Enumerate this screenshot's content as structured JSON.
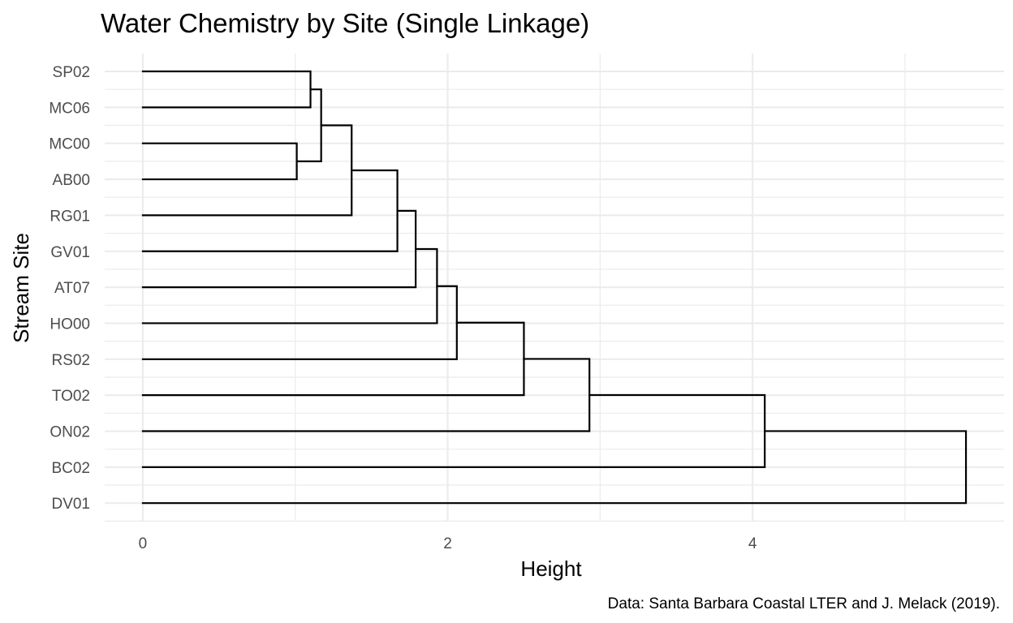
{
  "chart_data": {
    "type": "dendrogram",
    "title": "Water Chemistry by Site (Single Linkage)",
    "xlabel": "Height",
    "ylabel": "Stream Site",
    "caption": "Data: Santa Barbara Coastal LTER and J. Melack (2019).",
    "xlim": [
      -0.25,
      5.65
    ],
    "x_ticks": [
      0,
      2,
      4
    ],
    "grid": true,
    "leaves": [
      "SP02",
      "MC06",
      "MC00",
      "AB00",
      "RG01",
      "GV01",
      "AT07",
      "HO00",
      "RS02",
      "TO02",
      "ON02",
      "BC02",
      "DV01"
    ],
    "merges": [
      {
        "left": "MC00",
        "right": "AB00",
        "height": 1.01
      },
      {
        "left": "SP02",
        "right": "MC06",
        "height": 1.1
      },
      {
        "left": "m1",
        "right": "m0",
        "height": 1.17
      },
      {
        "left": "m2",
        "right": "RG01",
        "height": 1.37
      },
      {
        "left": "m3",
        "right": "GV01",
        "height": 1.67
      },
      {
        "left": "m4",
        "right": "AT07",
        "height": 1.79
      },
      {
        "left": "m5",
        "right": "HO00",
        "height": 1.93
      },
      {
        "left": "m6",
        "right": "RS02",
        "height": 2.06
      },
      {
        "left": "m7",
        "right": "TO02",
        "height": 2.5
      },
      {
        "left": "m8",
        "right": "ON02",
        "height": 2.93
      },
      {
        "left": "m9",
        "right": "BC02",
        "height": 4.08
      },
      {
        "left": "m10",
        "right": "DV01",
        "height": 5.4
      }
    ]
  }
}
